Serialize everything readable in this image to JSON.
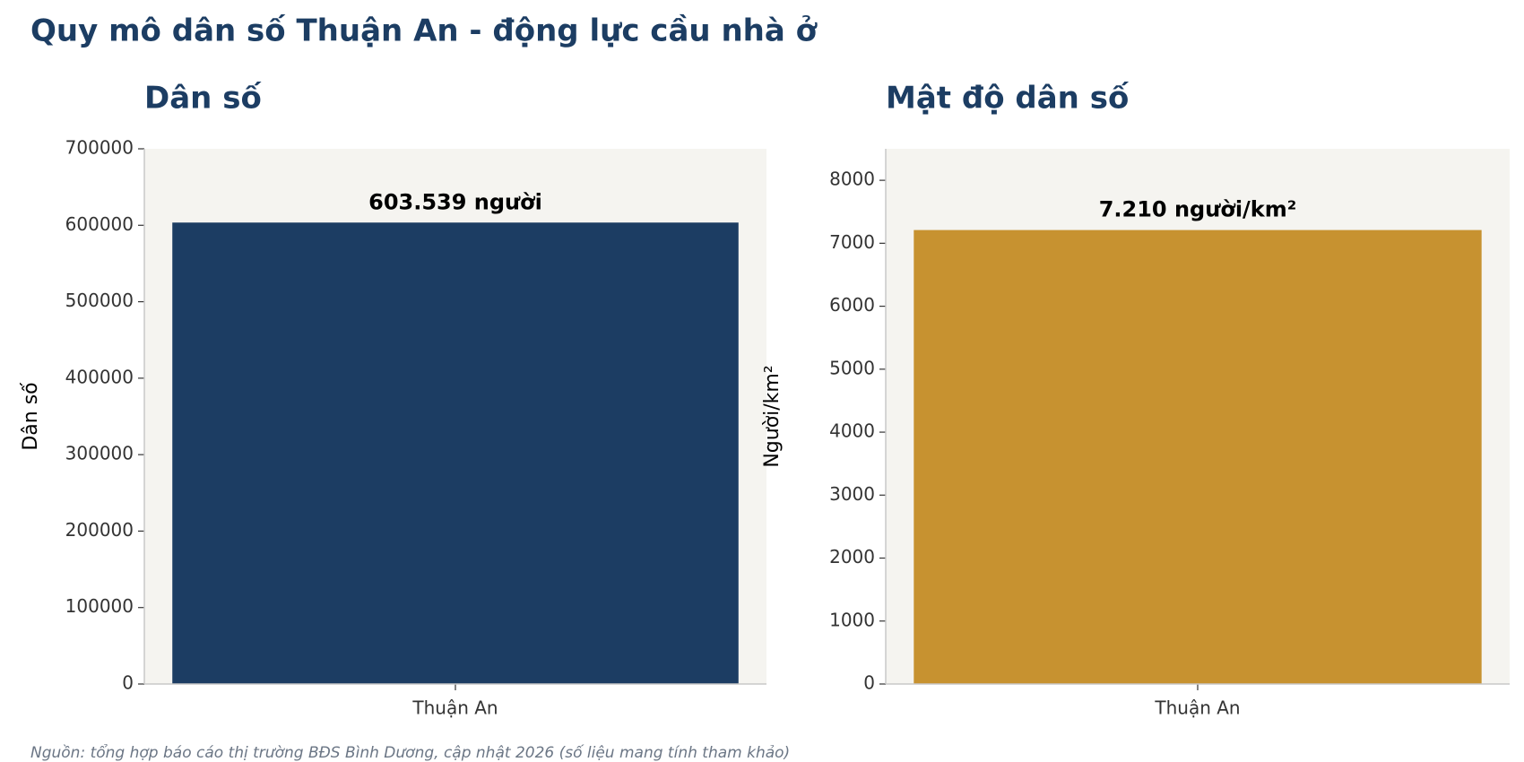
{
  "title": "Quy mô dân số Thuận An - động lực cầu nhà ở",
  "source": "Nguồn: tổng hợp báo cáo thị trường BĐS Bình Dương, cập nhật 2026 (số liệu mang tính tham khảo)",
  "chart_data": [
    {
      "type": "bar",
      "title": "Dân số",
      "ylabel": "Dân số",
      "categories": [
        "Thuận An"
      ],
      "values": [
        603539
      ],
      "value_labels": [
        "603.539 người"
      ],
      "color": "#1c3d63",
      "ylim": [
        0,
        700000
      ],
      "yticks": [
        0,
        100000,
        200000,
        300000,
        400000,
        500000,
        600000,
        700000
      ]
    },
    {
      "type": "bar",
      "title": "Mật độ dân số",
      "ylabel": "Người/km²",
      "categories": [
        "Thuận An"
      ],
      "values": [
        7210
      ],
      "value_labels": [
        "7.210 người/km²"
      ],
      "color": "#c79230",
      "ylim": [
        0,
        8500
      ],
      "yticks": [
        0,
        1000,
        2000,
        3000,
        4000,
        5000,
        6000,
        7000,
        8000
      ]
    }
  ]
}
